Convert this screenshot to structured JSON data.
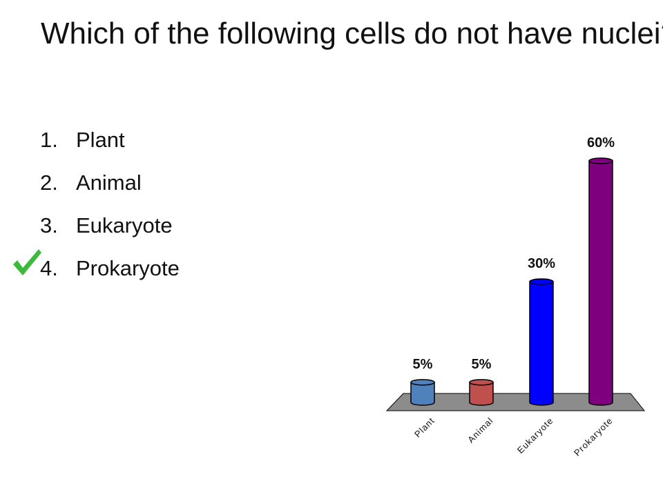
{
  "question": {
    "title": "Which of the following cells do not have nuclei?"
  },
  "answers": [
    {
      "number": "1.",
      "label": "Plant"
    },
    {
      "number": "2.",
      "label": "Animal"
    },
    {
      "number": "3.",
      "label": "Eukaryote"
    },
    {
      "number": "4.",
      "label": "Prokaryote"
    }
  ],
  "correct_answer_index": 3,
  "check_icon": "checkmark-icon",
  "colors": {
    "check": "#3db93d",
    "floor": "#8c8c8c"
  },
  "chart_data": {
    "type": "bar",
    "title": "",
    "categories": [
      "Plant",
      "Animal",
      "Eukaryote",
      "Prokaryote"
    ],
    "values": [
      5,
      5,
      30,
      60
    ],
    "value_labels": [
      "5%",
      "5%",
      "30%",
      "60%"
    ],
    "unit": "%",
    "ylim": [
      0,
      60
    ],
    "grid": false,
    "legend": "none",
    "bar_colors": [
      "#4f81bd",
      "#c0504d",
      "#0000ff",
      "#7f007f"
    ]
  }
}
